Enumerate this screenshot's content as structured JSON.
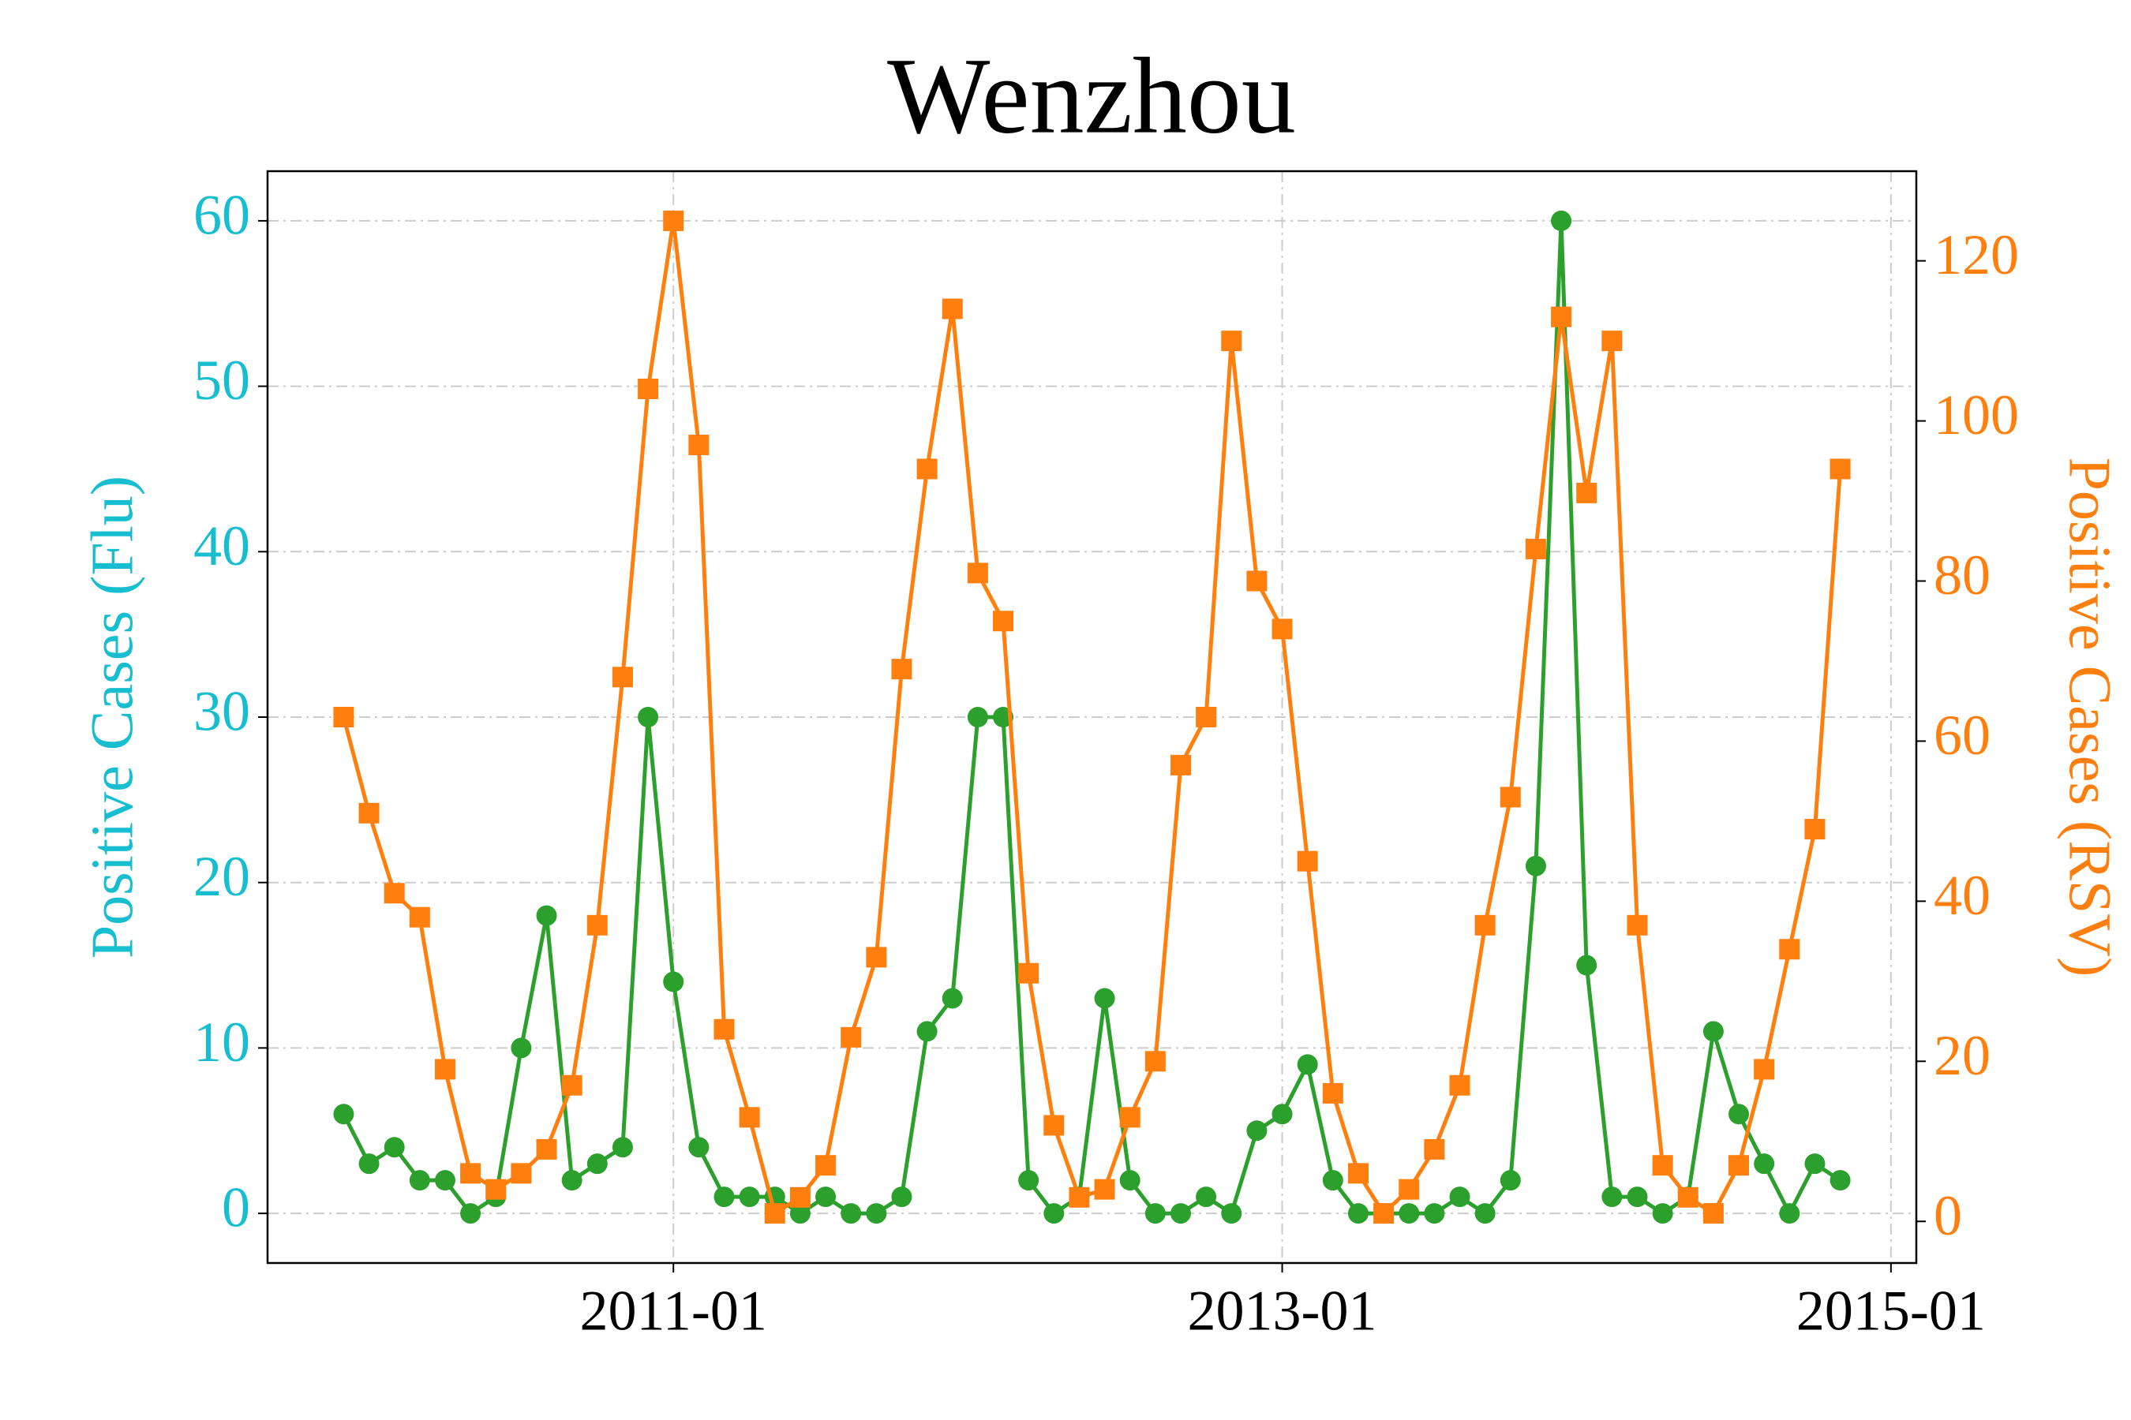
{
  "chart_data": {
    "type": "line",
    "title": "Wenzhou",
    "ylabel": "Positive Cases (Flu)",
    "y2label": "Positive Cases (RSV)",
    "ylabel_color": "#17becf",
    "y2label_color": "#ff7f0e",
    "x": [
      "2009-12",
      "2010-01",
      "2010-02",
      "2010-03",
      "2010-04",
      "2010-05",
      "2010-06",
      "2010-07",
      "2010-08",
      "2010-09",
      "2010-10",
      "2010-11",
      "2010-12",
      "2011-01",
      "2011-02",
      "2011-03",
      "2011-04",
      "2011-05",
      "2011-06",
      "2011-07",
      "2011-08",
      "2011-09",
      "2011-10",
      "2011-11",
      "2011-12",
      "2012-01",
      "2012-02",
      "2012-03",
      "2012-04",
      "2012-05",
      "2012-06",
      "2012-07",
      "2012-08",
      "2012-09",
      "2012-10",
      "2012-11",
      "2012-12",
      "2013-01",
      "2013-02",
      "2013-03",
      "2013-04",
      "2013-05",
      "2013-06",
      "2013-07",
      "2013-08",
      "2013-09",
      "2013-10",
      "2013-11",
      "2013-12",
      "2014-01",
      "2014-02",
      "2014-03",
      "2014-04",
      "2014-05",
      "2014-06",
      "2014-07",
      "2014-08",
      "2014-09",
      "2014-10",
      "2014-11"
    ],
    "series": [
      {
        "color": "#2ca02c",
        "marker": "circle",
        "axis": "y",
        "values": [
          6,
          3,
          4,
          2,
          2,
          0,
          1,
          10,
          18,
          2,
          3,
          4,
          30,
          14,
          4,
          1,
          1,
          1,
          0,
          1,
          0,
          0,
          1,
          11,
          13,
          30,
          30,
          2,
          0,
          1,
          13,
          2,
          0,
          0,
          1,
          0,
          5,
          6,
          9,
          2,
          0,
          0,
          0,
          0,
          1,
          0,
          2,
          21,
          60,
          15,
          1,
          1,
          0,
          1,
          11,
          6,
          3,
          0,
          3,
          2
        ]
      },
      {
        "color": "#ff7f0e",
        "marker": "square",
        "axis": "y2",
        "values": [
          63,
          51,
          41,
          38,
          19,
          6,
          4,
          6,
          9,
          17,
          37,
          68,
          104,
          125,
          97,
          24,
          13,
          1,
          3,
          7,
          23,
          33,
          69,
          94,
          114,
          81,
          75,
          31,
          12,
          3,
          4,
          13,
          20,
          57,
          63,
          110,
          80,
          74,
          45,
          16,
          6,
          1,
          4,
          9,
          17,
          37,
          53,
          84,
          113,
          91,
          110,
          37,
          7,
          3,
          1,
          7,
          19,
          34,
          49,
          94
        ]
      }
    ],
    "xlim": [
      "2009-09",
      "2015-02"
    ],
    "xticks": [
      "2011-01",
      "2013-01",
      "2015-01"
    ],
    "ylim": [
      -3,
      63
    ],
    "yticks": [
      0,
      10,
      20,
      30,
      40,
      50,
      60
    ],
    "y2lim": [
      -5.2,
      131.2
    ],
    "y2ticks": [
      0,
      20,
      40,
      60,
      80,
      100,
      120
    ],
    "grid": true
  }
}
